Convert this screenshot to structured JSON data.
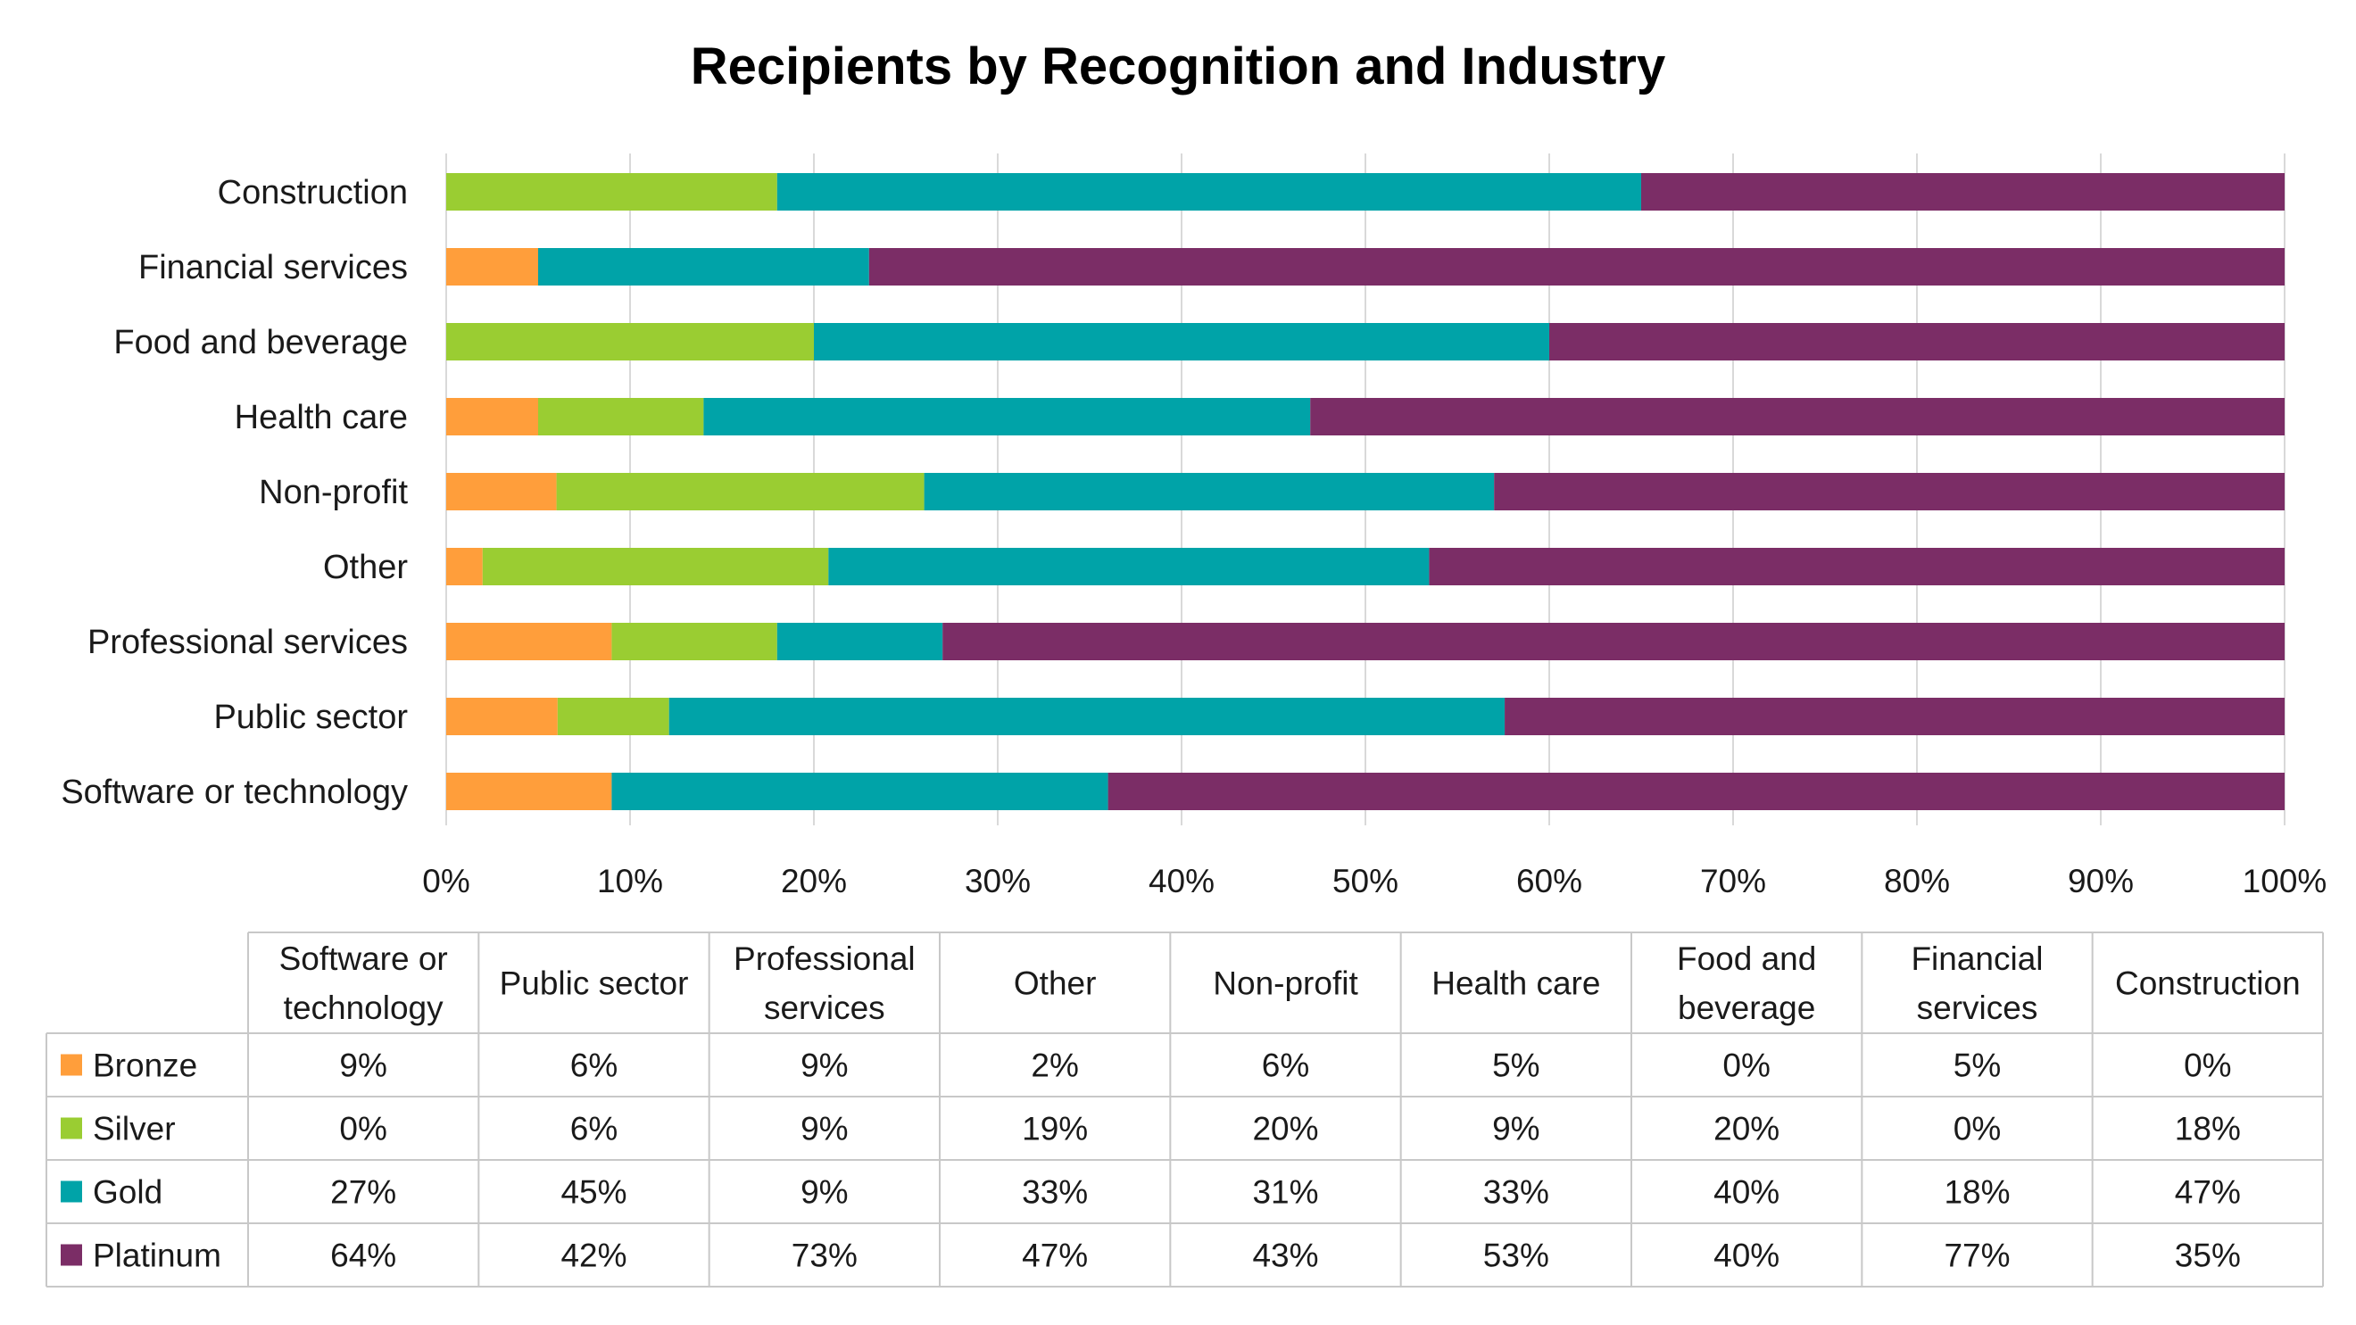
{
  "chart_data": {
    "type": "bar",
    "orientation": "horizontal",
    "stacked": "percent",
    "title": "Recipients by Recognition and Industry",
    "categories": [
      "Construction",
      "Financial services",
      "Food and beverage",
      "Health care",
      "Non-profit",
      "Other",
      "Professional services",
      "Public sector",
      "Software or technology"
    ],
    "series": [
      {
        "name": "Bronze",
        "color": "#FF9E3B",
        "values": [
          0,
          5,
          0,
          5,
          6,
          2,
          9,
          6,
          9
        ]
      },
      {
        "name": "Silver",
        "color": "#9ACD32",
        "values": [
          18,
          0,
          20,
          9,
          20,
          19,
          9,
          6,
          0
        ]
      },
      {
        "name": "Gold",
        "color": "#00A3A8",
        "values": [
          47,
          18,
          40,
          33,
          31,
          33,
          9,
          45,
          27
        ]
      },
      {
        "name": "Platinum",
        "color": "#7B2D66",
        "values": [
          35,
          77,
          40,
          53,
          43,
          47,
          73,
          42,
          64
        ]
      }
    ],
    "xaxis": {
      "ticks": [
        "0%",
        "10%",
        "20%",
        "30%",
        "40%",
        "50%",
        "60%",
        "70%",
        "80%",
        "90%",
        "100%"
      ],
      "range": [
        0,
        100
      ]
    },
    "grid": "vertical",
    "legend": "data-table",
    "data_table": {
      "columns": [
        [
          "Software or",
          "technology"
        ],
        [
          "Public sector"
        ],
        [
          "Professional",
          "services"
        ],
        [
          "Other"
        ],
        [
          "Non-profit"
        ],
        [
          "Health care"
        ],
        [
          "Food and",
          "beverage"
        ],
        [
          "Financial",
          "services"
        ],
        [
          "Construction"
        ]
      ],
      "rows": [
        {
          "name": "Bronze",
          "cells": [
            "9%",
            "6%",
            "9%",
            "2%",
            "6%",
            "5%",
            "0%",
            "5%",
            "0%"
          ]
        },
        {
          "name": "Silver",
          "cells": [
            "0%",
            "6%",
            "9%",
            "19%",
            "20%",
            "9%",
            "20%",
            "0%",
            "18%"
          ]
        },
        {
          "name": "Gold",
          "cells": [
            "27%",
            "45%",
            "9%",
            "33%",
            "31%",
            "33%",
            "40%",
            "18%",
            "47%"
          ]
        },
        {
          "name": "Platinum",
          "cells": [
            "64%",
            "42%",
            "73%",
            "47%",
            "43%",
            "53%",
            "40%",
            "77%",
            "35%"
          ]
        }
      ]
    }
  }
}
